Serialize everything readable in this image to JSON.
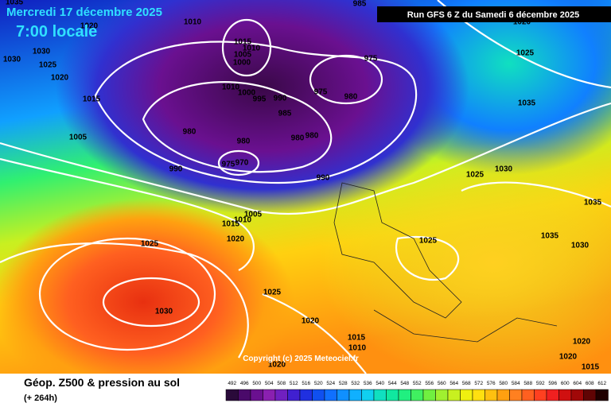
{
  "header": {
    "date": "Mercredi 17 décembre 2025",
    "time": "7:00 locale",
    "run": "Run GFS 6 Z du Samedi 6 décembre 2025"
  },
  "copyright": "Copyright (c) 2025 Meteociel.fr",
  "footer": {
    "title": "Géop. Z500 & pression au sol",
    "lead": "(+ 264h)"
  },
  "scale": {
    "ticks": [
      492,
      496,
      500,
      504,
      508,
      512,
      516,
      520,
      524,
      528,
      532,
      536,
      540,
      544,
      548,
      552,
      556,
      560,
      564,
      568,
      572,
      576,
      580,
      584,
      588,
      592,
      596,
      600,
      604,
      608,
      612
    ],
    "colors": [
      "#2a0a3a",
      "#4a0a6a",
      "#6a1090",
      "#8a20b0",
      "#7020c0",
      "#4020d0",
      "#2030e0",
      "#1050f0",
      "#1070ff",
      "#1090ff",
      "#10b0ff",
      "#10d0f0",
      "#10e0c0",
      "#10e8a0",
      "#20f080",
      "#40f060",
      "#70f040",
      "#a0f030",
      "#c8f020",
      "#f0f010",
      "#ffe010",
      "#ffc010",
      "#ffa010",
      "#ff8020",
      "#ff6020",
      "#ff4020",
      "#f02020",
      "#d01010",
      "#a00808",
      "#600404",
      "#200000"
    ]
  },
  "isobar_labels": [
    1035,
    985,
    1010,
    1020,
    1030,
    1030,
    1025,
    1020,
    1015,
    1005,
    1015,
    1010,
    1005,
    1000,
    975,
    975,
    980,
    1010,
    1000,
    995,
    990,
    985,
    980,
    980,
    980,
    980,
    975,
    970,
    990,
    990,
    1025,
    1035,
    1025,
    1030,
    1035,
    1005,
    1010,
    1015,
    1020,
    1025,
    1025,
    1035,
    1030,
    1025,
    1030,
    1020,
    1015,
    1010,
    1020,
    1020,
    1020,
    1015,
    1020
  ]
}
